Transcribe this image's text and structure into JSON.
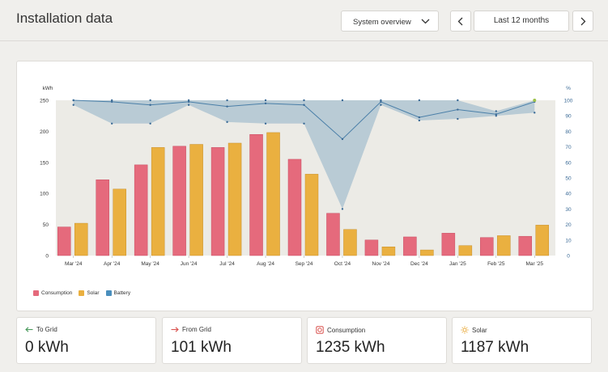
{
  "header": {
    "title": "Installation data",
    "view_select": "System overview",
    "range_label": "Last 12 months"
  },
  "chart_data": {
    "type": "bar",
    "ylabel": "kWh",
    "y2label": "%",
    "ylim": [
      0,
      250
    ],
    "y2lim": [
      0,
      100
    ],
    "yticks": [
      0,
      50,
      100,
      150,
      200,
      250
    ],
    "y2ticks": [
      0,
      10,
      20,
      30,
      40,
      50,
      60,
      70,
      80,
      90,
      100
    ],
    "categories": [
      "Mar '24",
      "Apr '24",
      "May '24",
      "Jun '24",
      "Jul '24",
      "Aug '24",
      "Sep '24",
      "Oct '24",
      "Nov '24",
      "Dec '24",
      "Jan '25",
      "Feb '25",
      "Mar '25"
    ],
    "series": [
      {
        "name": "Consumption",
        "color": "#e56a7c",
        "values": [
          46,
          122,
          146,
          176,
          174,
          195,
          155,
          68,
          25,
          30,
          36,
          29,
          31
        ]
      },
      {
        "name": "Solar",
        "color": "#eab040",
        "values": [
          52,
          107,
          174,
          179,
          181,
          198,
          131,
          42,
          14,
          9,
          16,
          32,
          49
        ]
      },
      {
        "name": "Battery",
        "color": "#4a8fbd",
        "max": [
          100,
          100,
          100,
          100,
          100,
          100,
          100,
          100,
          100,
          100,
          100,
          93,
          100
        ],
        "avg": [
          100,
          99,
          97,
          99,
          96,
          98,
          97,
          75,
          99,
          89,
          94,
          91,
          99
        ],
        "min": [
          97,
          85,
          85,
          97,
          86,
          85,
          85,
          30,
          97,
          87,
          88,
          90,
          92
        ]
      }
    ],
    "legend": [
      "Consumption",
      "Solar",
      "Battery"
    ]
  },
  "stats": [
    {
      "icon": "arrow-left-icon",
      "label": "To Grid",
      "value": "0 kWh",
      "color": "#4a9a5c"
    },
    {
      "icon": "arrow-right-icon",
      "label": "From Grid",
      "value": "101 kWh",
      "color": "#d9534f"
    },
    {
      "icon": "plug-icon",
      "label": "Consumption",
      "value": "1235 kWh",
      "color": "#d9534f"
    },
    {
      "icon": "sun-icon",
      "label": "Solar",
      "value": "1187 kWh",
      "color": "#e8a93a"
    }
  ]
}
